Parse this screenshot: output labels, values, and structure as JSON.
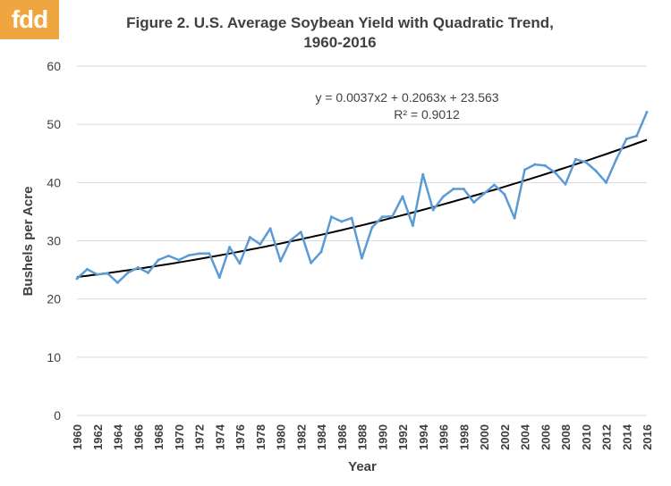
{
  "logo": {
    "text": "fdd",
    "color": "#f0a640"
  },
  "title": "Figure  2. U.S. Average Soybean Yield with Quadratic  Trend,\n1960-2016",
  "chart_data": {
    "type": "line",
    "xlabel": "Year",
    "ylabel": "Bushels per Acre",
    "ylim": [
      0,
      60
    ],
    "y_ticks": [
      0,
      10,
      20,
      30,
      40,
      50,
      60
    ],
    "xlim": [
      1960,
      2016
    ],
    "x_ticks": [
      1960,
      1962,
      1964,
      1966,
      1968,
      1970,
      1972,
      1974,
      1976,
      1978,
      1980,
      1982,
      1984,
      1986,
      1988,
      1990,
      1992,
      1994,
      1996,
      1998,
      2000,
      2002,
      2004,
      2006,
      2008,
      2010,
      2012,
      2014,
      2016
    ],
    "grid": "horizontal",
    "series": [
      {
        "color": "#5b9bd5",
        "x": [
          1960,
          1961,
          1962,
          1963,
          1964,
          1965,
          1966,
          1967,
          1968,
          1969,
          1970,
          1971,
          1972,
          1973,
          1974,
          1975,
          1976,
          1977,
          1978,
          1979,
          1980,
          1981,
          1982,
          1983,
          1984,
          1985,
          1986,
          1987,
          1988,
          1989,
          1990,
          1991,
          1992,
          1993,
          1994,
          1995,
          1996,
          1997,
          1998,
          1999,
          2000,
          2001,
          2002,
          2003,
          2004,
          2005,
          2006,
          2007,
          2008,
          2009,
          2010,
          2011,
          2012,
          2013,
          2014,
          2015,
          2016
        ],
        "values": [
          23.5,
          25.1,
          24.2,
          24.4,
          22.8,
          24.5,
          25.4,
          24.5,
          26.7,
          27.4,
          26.7,
          27.5,
          27.8,
          27.8,
          23.7,
          28.9,
          26.1,
          30.6,
          29.4,
          32.1,
          26.5,
          30.1,
          31.5,
          26.2,
          28.1,
          34.1,
          33.3,
          33.9,
          27.0,
          32.3,
          34.1,
          34.2,
          37.6,
          32.6,
          41.4,
          35.3,
          37.6,
          38.9,
          38.9,
          36.6,
          38.1,
          39.6,
          38.0,
          33.9,
          42.2,
          43.1,
          42.9,
          41.7,
          39.7,
          44.0,
          43.5,
          42.0,
          40.0,
          44.0,
          47.5,
          48.0,
          52.1
        ]
      }
    ],
    "trendline": {
      "type": "quadratic",
      "color": "#000000",
      "equation": "y = 0.0037x2 + 0.2063x + 23.563",
      "r_squared": "R² = 0.9012",
      "coefficients": [
        0.0037,
        0.2063,
        23.563
      ]
    }
  }
}
